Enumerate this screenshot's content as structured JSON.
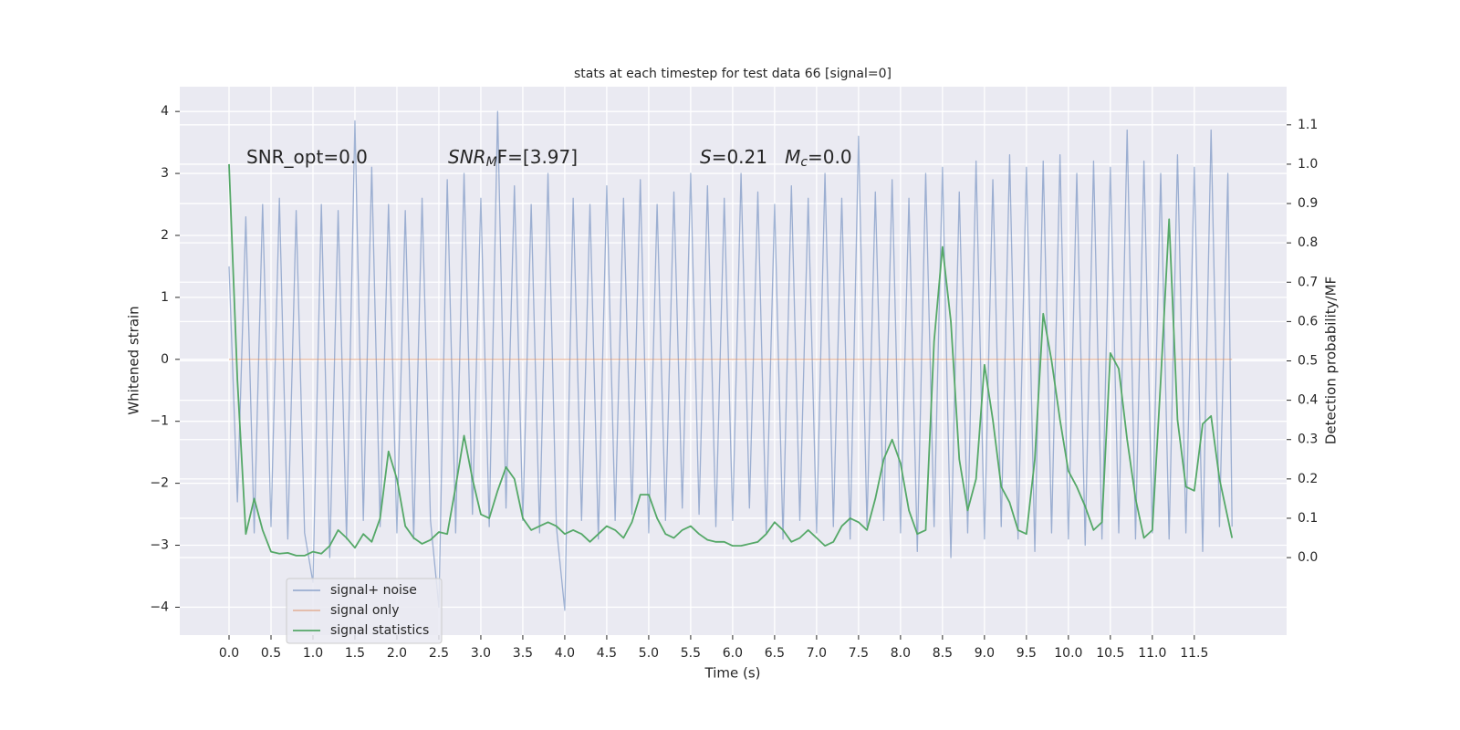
{
  "chart_data": {
    "type": "line",
    "title": "stats at each timestep for test data 66 [signal=0]",
    "xlabel": "Time (s)",
    "ylabel": "Whitened strain",
    "y2label": "Detection probability/MF",
    "grid": true,
    "legend": "lower left",
    "xlim": [
      -0.587,
      12.6
    ],
    "ylim": [
      -4.45,
      4.4
    ],
    "y2lim": [
      -0.197,
      1.197
    ],
    "xticks": [
      {
        "value": 0,
        "label": "0.0"
      },
      0.5,
      {
        "value": 1,
        "label": "1.0"
      },
      1.5,
      {
        "value": 2,
        "label": "2.0"
      },
      2.5,
      {
        "value": 3,
        "label": "3.0"
      },
      3.5,
      {
        "value": 4,
        "label": "4.0"
      },
      4.5,
      {
        "value": 5,
        "label": "5.0"
      },
      5.5,
      {
        "value": 6,
        "label": "6.0"
      },
      6.5,
      {
        "value": 7,
        "label": "7.0"
      },
      7.5,
      {
        "value": 8,
        "label": "8.0"
      },
      8.5,
      {
        "value": 9,
        "label": "9.0"
      },
      9.5,
      {
        "value": 10,
        "label": "10.0"
      },
      10.5,
      {
        "value": 11,
        "label": "11.0"
      },
      11.5
    ],
    "yticks": [
      {
        "value": -4,
        "label": "−4"
      },
      {
        "value": -3,
        "label": "−3"
      },
      {
        "value": -2,
        "label": "−2"
      },
      {
        "value": -1,
        "label": "−1"
      },
      0,
      1,
      2,
      3,
      4
    ],
    "y2ticks": [
      {
        "value": 0,
        "label": "0.0"
      },
      0.1,
      0.2,
      0.3,
      0.4,
      0.5,
      0.6,
      0.7,
      0.8,
      0.9,
      {
        "value": 1,
        "label": "1.0"
      },
      1.1
    ],
    "annotations": [
      {
        "parts": [
          {
            "text": "SNR_opt=0.0",
            "style": "normal"
          }
        ]
      },
      {
        "parts": [
          {
            "text": "SNR",
            "style": "italic"
          },
          {
            "text": "M",
            "style": "italic-sub"
          },
          {
            "text": "F=[3.97]",
            "style": "normal"
          }
        ]
      },
      {
        "parts": [
          {
            "text": "S",
            "style": "italic"
          },
          {
            "text": "=0.21   ",
            "style": "normal"
          },
          {
            "text": "M",
            "style": "italic"
          },
          {
            "text": "c",
            "style": "italic-sub"
          },
          {
            "text": "=0.0",
            "style": "normal"
          }
        ]
      }
    ],
    "x": [
      0,
      0.1,
      0.2,
      0.3,
      0.4,
      0.5,
      0.6,
      0.7,
      0.8,
      0.9,
      1,
      1.1,
      1.2,
      1.3,
      1.4,
      1.5,
      1.6,
      1.7,
      1.8,
      1.9,
      2,
      2.1,
      2.2,
      2.3,
      2.4,
      2.5,
      2.6,
      2.7,
      2.8,
      2.9,
      3,
      3.1,
      3.2,
      3.3,
      3.4,
      3.5,
      3.6,
      3.7,
      3.8,
      3.9,
      4,
      4.1,
      4.2,
      4.3,
      4.4,
      4.5,
      4.6,
      4.7,
      4.8,
      4.9,
      5,
      5.1,
      5.2,
      5.3,
      5.4,
      5.5,
      5.6,
      5.7,
      5.8,
      5.9,
      6,
      6.1,
      6.2,
      6.3,
      6.4,
      6.5,
      6.6,
      6.7,
      6.8,
      6.9,
      7,
      7.1,
      7.2,
      7.3,
      7.4,
      7.5,
      7.6,
      7.7,
      7.8,
      7.9,
      8,
      8.1,
      8.2,
      8.3,
      8.4,
      8.5,
      8.6,
      8.7,
      8.8,
      8.9,
      9,
      9.1,
      9.2,
      9.3,
      9.4,
      9.5,
      9.6,
      9.7,
      9.8,
      9.9,
      10,
      10.1,
      10.2,
      10.3,
      10.4,
      10.5,
      10.6,
      10.7,
      10.8,
      10.9,
      11,
      11.1,
      11.2,
      11.3,
      11.4,
      11.5,
      11.6,
      11.7,
      11.8,
      11.9,
      11.95
    ],
    "series": [
      {
        "name": "signal+ noise",
        "color": "#4c72b0",
        "opacity": 0.5,
        "values": [
          1.5,
          -2.3,
          2.3,
          -2.8,
          2.5,
          -2.7,
          2.6,
          -2.9,
          2.4,
          -2.8,
          -3.6,
          2.5,
          -3.2,
          2.4,
          -2.9,
          3.85,
          -2.6,
          3.1,
          -2.7,
          2.5,
          -2.8,
          2.4,
          -2.9,
          2.6,
          -2.6,
          -4.0,
          2.9,
          -2.8,
          3.0,
          -2.5,
          2.6,
          -2.7,
          4.0,
          -2.4,
          2.8,
          -2.6,
          2.5,
          -2.8,
          3.0,
          -2.7,
          -4.05,
          2.6,
          -2.6,
          2.5,
          -2.9,
          2.8,
          -2.6,
          2.6,
          -2.5,
          2.9,
          -2.8,
          2.5,
          -2.6,
          2.7,
          -2.4,
          3.0,
          -2.5,
          2.8,
          -2.7,
          2.6,
          -2.6,
          3.0,
          -2.4,
          2.7,
          -2.8,
          2.5,
          -2.9,
          2.8,
          -2.6,
          2.6,
          -2.8,
          3.0,
          -2.7,
          2.6,
          -2.9,
          3.6,
          -2.7,
          2.7,
          -2.6,
          2.9,
          -2.8,
          2.6,
          -3.1,
          3.0,
          -2.7,
          3.1,
          -3.2,
          2.7,
          -2.8,
          3.2,
          -2.9,
          2.9,
          -2.7,
          3.3,
          -2.9,
          3.1,
          -3.1,
          3.2,
          -2.8,
          3.3,
          -2.9,
          3.0,
          -3.0,
          3.2,
          -2.9,
          3.1,
          -2.8,
          3.7,
          -2.9,
          3.2,
          -2.8,
          3.0,
          -2.9,
          3.3,
          -2.8,
          3.1,
          -3.1,
          3.7,
          -2.7,
          3.0,
          -2.7
        ]
      },
      {
        "name": "signal only",
        "color": "#dd8452",
        "opacity": 0.5,
        "values": [
          0,
          0,
          0,
          0,
          0,
          0,
          0,
          0,
          0,
          0,
          0,
          0,
          0,
          0,
          0,
          0,
          0,
          0,
          0,
          0,
          0,
          0,
          0,
          0,
          0,
          0,
          0,
          0,
          0,
          0,
          0,
          0,
          0,
          0,
          0,
          0,
          0,
          0,
          0,
          0,
          0,
          0,
          0,
          0,
          0,
          0,
          0,
          0,
          0,
          0,
          0,
          0,
          0,
          0,
          0,
          0,
          0,
          0,
          0,
          0,
          0,
          0,
          0,
          0,
          0,
          0,
          0,
          0,
          0,
          0,
          0,
          0,
          0,
          0,
          0,
          0,
          0,
          0,
          0,
          0,
          0,
          0,
          0,
          0,
          0,
          0,
          0,
          0,
          0,
          0,
          0,
          0,
          0,
          0,
          0,
          0,
          0,
          0,
          0,
          0,
          0,
          0,
          0,
          0,
          0,
          0,
          0,
          0,
          0,
          0,
          0,
          0,
          0,
          0,
          0,
          0,
          0,
          0,
          0,
          0,
          0
        ]
      },
      {
        "name": "signal statistics",
        "color": "#55a868",
        "opacity": 1,
        "axis": "y2",
        "values": [
          1.0,
          0.45,
          0.06,
          0.15,
          0.07,
          0.015,
          0.01,
          0.012,
          0.005,
          0.005,
          0.015,
          0.01,
          0.03,
          0.07,
          0.05,
          0.025,
          0.06,
          0.04,
          0.1,
          0.27,
          0.2,
          0.08,
          0.05,
          0.035,
          0.045,
          0.065,
          0.06,
          0.18,
          0.31,
          0.2,
          0.11,
          0.1,
          0.17,
          0.23,
          0.2,
          0.1,
          0.07,
          0.08,
          0.09,
          0.08,
          0.06,
          0.07,
          0.06,
          0.04,
          0.06,
          0.08,
          0.07,
          0.05,
          0.09,
          0.16,
          0.16,
          0.1,
          0.06,
          0.05,
          0.07,
          0.08,
          0.06,
          0.045,
          0.04,
          0.04,
          0.03,
          0.03,
          0.035,
          0.04,
          0.06,
          0.09,
          0.07,
          0.04,
          0.05,
          0.07,
          0.05,
          0.03,
          0.04,
          0.08,
          0.1,
          0.09,
          0.07,
          0.15,
          0.25,
          0.3,
          0.24,
          0.12,
          0.06,
          0.07,
          0.55,
          0.79,
          0.6,
          0.25,
          0.12,
          0.2,
          0.49,
          0.35,
          0.18,
          0.14,
          0.07,
          0.06,
          0.25,
          0.62,
          0.5,
          0.35,
          0.22,
          0.18,
          0.13,
          0.07,
          0.09,
          0.52,
          0.48,
          0.3,
          0.15,
          0.05,
          0.07,
          0.45,
          0.86,
          0.35,
          0.18,
          0.17,
          0.34,
          0.36,
          0.2,
          0.1,
          0.05
        ]
      }
    ]
  }
}
